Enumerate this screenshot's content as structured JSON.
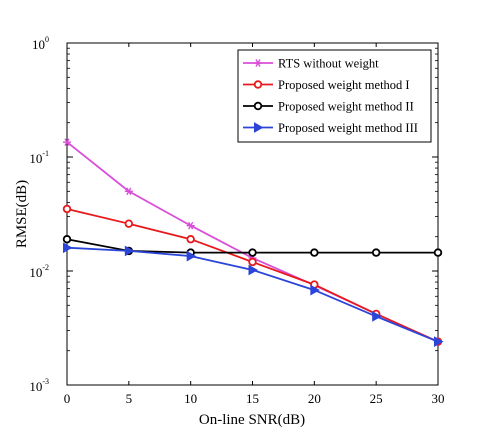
{
  "chart_data": {
    "type": "line",
    "xlabel": "On-line SNR(dB)",
    "ylabel": "RMSE(dB)",
    "xlim": [
      0,
      30
    ],
    "ylim": [
      0.001,
      1
    ],
    "yscale": "log",
    "grid": false,
    "legend_position": "top-right",
    "x": [
      0,
      5,
      10,
      15,
      20,
      25,
      30
    ],
    "x_ticks": [
      "0",
      "5",
      "10",
      "15",
      "20",
      "25",
      "30"
    ],
    "y_ticks": [
      {
        "value": 1,
        "base": "10",
        "exp": "0"
      },
      {
        "value": 0.1,
        "base": "10",
        "exp": "-1"
      },
      {
        "value": 0.01,
        "base": "10",
        "exp": "-2"
      },
      {
        "value": 0.001,
        "base": "10",
        "exp": "-3"
      }
    ],
    "series": [
      {
        "name": "RTS without weight",
        "color": "#d94fd9",
        "marker": "star",
        "values": [
          0.135,
          0.05,
          0.025,
          0.013,
          0.0075,
          0.0042,
          0.0024
        ]
      },
      {
        "name": "Proposed weight method I",
        "color": "#e8191c",
        "marker": "circle",
        "values": [
          0.035,
          0.026,
          0.019,
          0.012,
          0.0076,
          0.0042,
          0.0024
        ]
      },
      {
        "name": "Proposed weight method II",
        "color": "#000000",
        "marker": "circle",
        "values": [
          0.019,
          0.015,
          0.0145,
          0.0145,
          0.0145,
          0.0145,
          0.0145
        ]
      },
      {
        "name": "Proposed weight method III",
        "color": "#2b45d9",
        "marker": "triangle-right",
        "values": [
          0.016,
          0.015,
          0.0135,
          0.0102,
          0.0068,
          0.004,
          0.0024
        ]
      }
    ]
  }
}
